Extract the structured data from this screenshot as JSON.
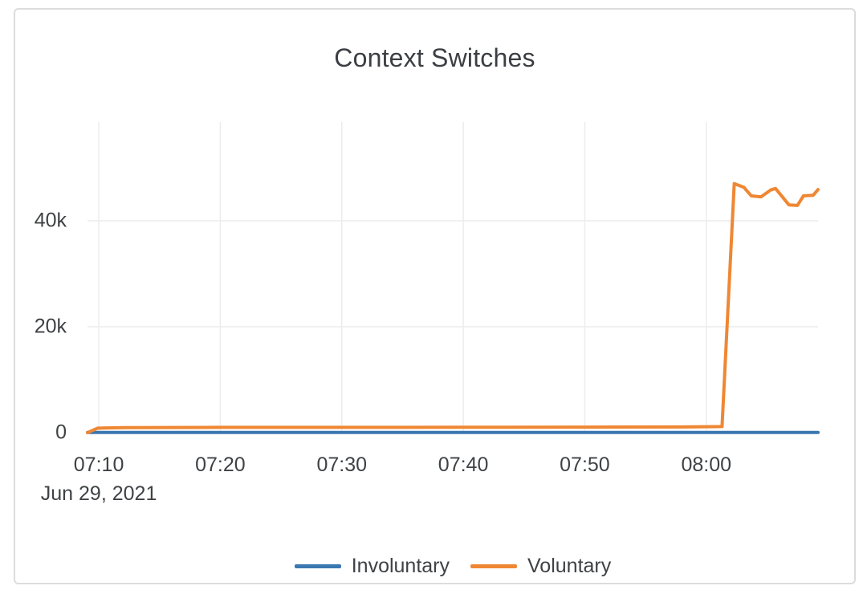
{
  "card": {
    "background": "#ffffff",
    "border_color": "#dcdcdc"
  },
  "chart_data": {
    "type": "line",
    "title": "Context Switches",
    "title_color": "#3b3e42",
    "axis_text_color": "#3f4245",
    "grid_color": "#ececec",
    "grid": true,
    "legend_position": "bottom-center",
    "x_axis": {
      "tick_labels": [
        "07:10",
        "07:20",
        "07:30",
        "07:40",
        "07:50",
        "08:00"
      ],
      "tick_minutes_after_0700": [
        10,
        20,
        30,
        40,
        50,
        60
      ],
      "date_label": "Jun 29, 2021",
      "range_minutes_after_0700": [
        9.07,
        69.2
      ]
    },
    "y_axis": {
      "ticks": [
        {
          "label": "0",
          "value": 0
        },
        {
          "label": "20k",
          "value": 20000
        },
        {
          "label": "40k",
          "value": 40000
        }
      ],
      "range": [
        -150,
        58640
      ]
    },
    "series": [
      {
        "name": "Involuntary",
        "color": "#3b77b0",
        "points": [
          [
            9.07,
            40
          ],
          [
            69.2,
            40
          ]
        ]
      },
      {
        "name": "Voluntary",
        "color": "#ef8733",
        "points": [
          [
            9.07,
            0
          ],
          [
            9.9,
            850
          ],
          [
            12,
            950
          ],
          [
            20,
            1000
          ],
          [
            30,
            1000
          ],
          [
            40,
            1020
          ],
          [
            50,
            1050
          ],
          [
            58,
            1080
          ],
          [
            61.3,
            1150
          ],
          [
            62.3,
            47000
          ],
          [
            63.1,
            46300
          ],
          [
            63.7,
            44700
          ],
          [
            64.5,
            44500
          ],
          [
            65.3,
            45800
          ],
          [
            65.7,
            46100
          ],
          [
            66.8,
            43000
          ],
          [
            67.5,
            42900
          ],
          [
            68.0,
            44700
          ],
          [
            68.8,
            44800
          ],
          [
            69.2,
            45900
          ]
        ]
      }
    ]
  }
}
